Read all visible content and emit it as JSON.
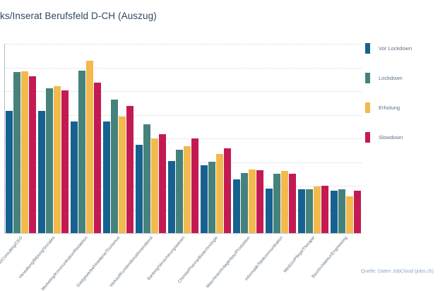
{
  "header": {
    "title": "ks/Inserat Berufsfeld D-CH (Auszug)"
  },
  "source_note": "Quelle: Daten JobCloud (jobs.ch)",
  "chart_data": {
    "type": "bar",
    "title": "ks/Inserat Berufsfeld D-CH (Auszug)",
    "categories": [
      "Administration/HR/Consulting/CEO",
      "Verwaltung/Bildung/Soziales",
      "Marketing/Kommunikation/Redaktion",
      "Gastgewerbe/Hotellerie/Tourismus",
      "Verkauf/Kundendienst/Innendienst",
      "Banking/Versicherungswesen",
      "Chemie/Pharma/Biotechnologie",
      "Maschinen/Anlagenbau/Produktion",
      "Informatik/Telekommunikation",
      "Medizin/Pflege/Therapie",
      "Bau/Architektur/Engineering"
    ],
    "series": [
      {
        "name": "Vor Lockdown",
        "color": "#16618f",
        "values": [
          194,
          194,
          177,
          177,
          140,
          114,
          107,
          85,
          71,
          69,
          67
        ]
      },
      {
        "name": "Lockdown",
        "color": "#45827c",
        "values": [
          255,
          229,
          257,
          212,
          172,
          132,
          113,
          95,
          94,
          69,
          69
        ]
      },
      {
        "name": "Erholung",
        "color": "#f2b94d",
        "values": [
          256,
          233,
          273,
          185,
          150,
          138,
          125,
          101,
          99,
          74,
          58
        ]
      },
      {
        "name": "Slowdown",
        "color": "#c41a53",
        "values": [
          249,
          226,
          238,
          201,
          157,
          150,
          134,
          100,
          94,
          75,
          67
        ]
      }
    ],
    "xlabel": "",
    "ylabel": "",
    "ylim": [
      0,
      300
    ],
    "grid": "horizontal-dotted",
    "gridline_divisions": 8,
    "legend_position": "right",
    "y_tick_labels_visible": false
  }
}
